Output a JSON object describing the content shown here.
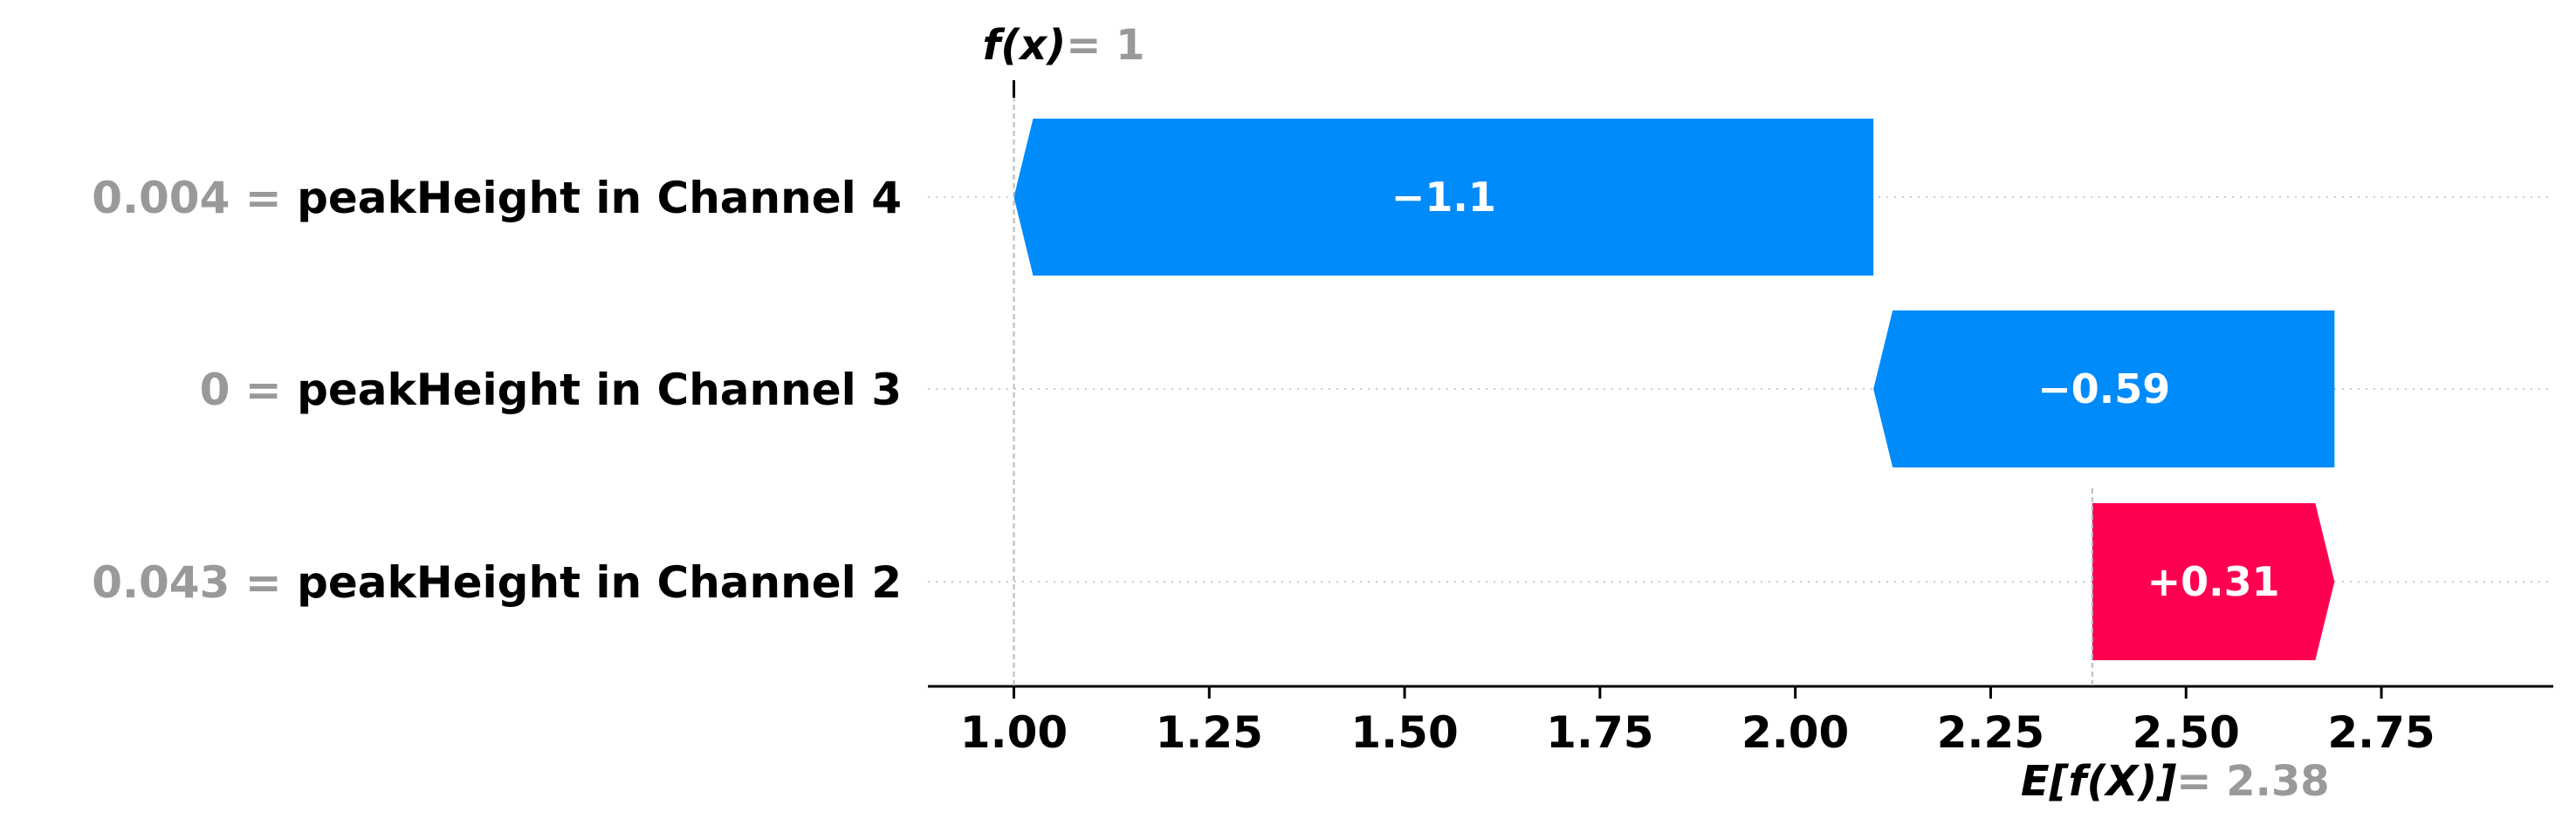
{
  "chart_data": {
    "type": "waterfall",
    "base_value": 2.38,
    "output_value": 1,
    "base_label_fn": "E[f(X)]",
    "base_label_val": "= 2.38",
    "output_label_fn": "f(x)",
    "output_label_val": "= 1",
    "features": [
      {
        "value": "0.004",
        "name": "peakHeight in Channel 4",
        "shap": -1.1,
        "start": 2.1,
        "end": 1.0,
        "label": "−1.1"
      },
      {
        "value": "0",
        "name": "peakHeight in Channel 3",
        "shap": -0.59,
        "start": 2.69,
        "end": 2.1,
        "label": "−0.59"
      },
      {
        "value": "0.043",
        "name": "peakHeight in Channel 2",
        "shap": 0.31,
        "start": 2.38,
        "end": 2.69,
        "label": "+0.31"
      }
    ],
    "xlim": [
      0.89,
      2.97
    ],
    "xticks": [
      1.0,
      1.25,
      1.5,
      1.75,
      2.0,
      2.25,
      2.5,
      2.75
    ],
    "xtick_labels": [
      "1.00",
      "1.25",
      "1.50",
      "1.75",
      "2.00",
      "2.25",
      "2.50",
      "2.75"
    ],
    "colors": {
      "negative": "#008bfb",
      "positive": "#ff0051",
      "feature_value": "#999999",
      "text": "#000000"
    }
  }
}
